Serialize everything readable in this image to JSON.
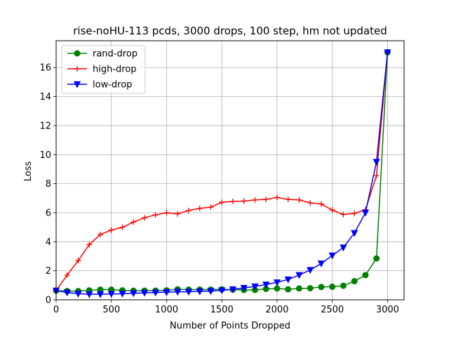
{
  "chart_data": {
    "type": "line",
    "title": "rise-noHU-113 pcds, 3000 drops, 100 step, hm not updated",
    "xlabel": "Number of Points Dropped",
    "ylabel": "Loss",
    "xlim": [
      0,
      3150
    ],
    "ylim": [
      0,
      17.85
    ],
    "xticks": [
      0,
      500,
      1000,
      1500,
      2000,
      2500,
      3000
    ],
    "yticks": [
      0,
      2,
      4,
      6,
      8,
      10,
      12,
      14,
      16
    ],
    "grid": true,
    "legend_position": "top-left",
    "x": [
      0,
      100,
      200,
      300,
      400,
      500,
      600,
      700,
      800,
      900,
      1000,
      1100,
      1200,
      1300,
      1400,
      1500,
      1600,
      1700,
      1800,
      1900,
      2000,
      2100,
      2200,
      2300,
      2400,
      2500,
      2600,
      2700,
      2800,
      2900,
      3000
    ],
    "series": [
      {
        "name": "rand-drop",
        "color": "#008000",
        "marker": "circle",
        "values": [
          0.63,
          0.6,
          0.6,
          0.65,
          0.7,
          0.7,
          0.65,
          0.62,
          0.63,
          0.63,
          0.65,
          0.72,
          0.7,
          0.7,
          0.7,
          0.72,
          0.7,
          0.68,
          0.68,
          0.75,
          0.78,
          0.72,
          0.78,
          0.8,
          0.88,
          0.9,
          0.97,
          1.28,
          1.7,
          2.85,
          17.05
        ]
      },
      {
        "name": "high-drop",
        "color": "#ff0000",
        "marker": "plus",
        "values": [
          0.63,
          1.7,
          2.7,
          3.8,
          4.5,
          4.8,
          5.0,
          5.35,
          5.65,
          5.85,
          6.0,
          5.92,
          6.15,
          6.3,
          6.38,
          6.72,
          6.78,
          6.8,
          6.88,
          6.92,
          7.05,
          6.92,
          6.88,
          6.68,
          6.6,
          6.18,
          5.88,
          5.95,
          6.2,
          8.55,
          17.05
        ]
      },
      {
        "name": "low-drop",
        "color": "#0000ff",
        "marker": "triangle-down",
        "values": [
          0.63,
          0.5,
          0.42,
          0.38,
          0.38,
          0.4,
          0.42,
          0.45,
          0.48,
          0.5,
          0.52,
          0.55,
          0.55,
          0.58,
          0.6,
          0.65,
          0.72,
          0.82,
          0.92,
          1.05,
          1.2,
          1.4,
          1.7,
          2.05,
          2.5,
          3.05,
          3.6,
          4.6,
          6.0,
          9.5,
          17.05
        ]
      }
    ]
  }
}
